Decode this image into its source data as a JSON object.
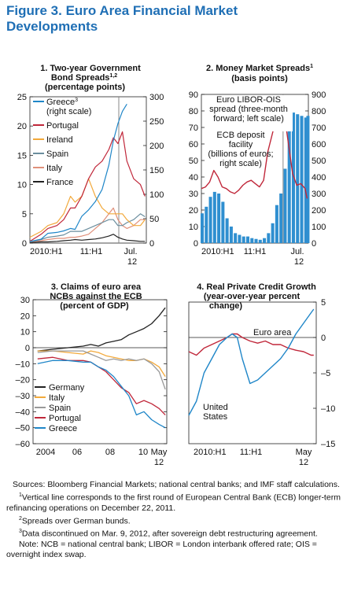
{
  "figure": {
    "title_line1": "Figure 3. Euro Area Financial Market",
    "title_line2": "Developments"
  },
  "notes": {
    "sources": "Sources: Bloomberg Financial Markets; national central banks; and IMF staff calculations.",
    "fn1_mark": "1",
    "fn1": "Vertical line corresponds to the first round of European Central Bank (ECB) longer-term refinancing operations on December 22, 2011.",
    "fn2_mark": "2",
    "fn2": "Spreads over German bunds.",
    "fn3_mark": "3",
    "fn3": "Data discontinued on Mar. 9, 2012, after sovereign debt restructuring agreement.",
    "note": "Note: NCB = national central bank; LIBOR = London interbank offered rate;  OIS = overnight index swap."
  },
  "chart_data": [
    {
      "type": "line",
      "title_line1": "1. Two-year Government",
      "title_line2": "Bond Spreads",
      "title_sup": "1,2",
      "title_line3": "(percentage points)",
      "x_ticks": [
        "2010:H1",
        "11:H1",
        "Jul."
      ],
      "x_tick_sub": "12",
      "x": [
        2010.0,
        2010.25,
        2010.4,
        2010.6,
        2010.75,
        2010.9,
        2011.0,
        2011.15,
        2011.3,
        2011.45,
        2011.6,
        2011.75,
        2011.85,
        2011.95,
        2012.05,
        2012.15,
        2012.3,
        2012.45,
        2012.55
      ],
      "xlim": [
        2010.0,
        2012.58
      ],
      "vline_x": 2011.97,
      "ylim_left": [
        0,
        25
      ],
      "yticks_left": [
        0,
        5,
        10,
        15,
        20,
        25
      ],
      "ylim_right": [
        0,
        300
      ],
      "yticks_right": [
        0,
        50,
        100,
        150,
        200,
        250,
        300
      ],
      "series": [
        {
          "name": "Greece",
          "name_sup": "3",
          "name_line2": "(right scale)",
          "color": "#1f86c8",
          "axis": "right",
          "values": [
            3,
            8,
            20,
            22,
            25,
            30,
            28,
            55,
            68,
            85,
            110,
            160,
            210,
            245,
            270,
            285,
            null,
            null,
            null
          ]
        },
        {
          "name": "Portugal",
          "color": "#c0273a",
          "axis": "left",
          "values": [
            0.3,
            1.5,
            2.5,
            3,
            4,
            6,
            6,
            8,
            11,
            13,
            14,
            16,
            18,
            17,
            19,
            14,
            11,
            10,
            8
          ]
        },
        {
          "name": "Ireland",
          "color": "#f2a93b",
          "axis": "left",
          "values": [
            1,
            2,
            3,
            3.5,
            5,
            8,
            7,
            8,
            11,
            8,
            6,
            5,
            5,
            5,
            5,
            4,
            3,
            3,
            4
          ]
        },
        {
          "name": "Spain",
          "color": "#6b8e9e",
          "axis": "left",
          "values": [
            0.2,
            0.6,
            1,
            1.2,
            1.4,
            2,
            2,
            2,
            2.5,
            3,
            3.5,
            4,
            4,
            3,
            3,
            3.5,
            4,
            5,
            4.5
          ]
        },
        {
          "name": "Italy",
          "color": "#e0907a",
          "axis": "left",
          "values": [
            0.2,
            0.4,
            0.6,
            0.8,
            0.8,
            1,
            1,
            1.2,
            1.5,
            2.5,
            3.5,
            5,
            6,
            4,
            3,
            2.5,
            3,
            4,
            4
          ]
        },
        {
          "name": "France",
          "color": "#222222",
          "axis": "left",
          "values": [
            0.1,
            0.2,
            0.2,
            0.3,
            0.4,
            0.5,
            0.6,
            0.5,
            0.6,
            0.7,
            0.9,
            1.2,
            1.5,
            1.0,
            0.7,
            0.5,
            0.4,
            0.3,
            0.3
          ]
        }
      ]
    },
    {
      "type": "line",
      "title_line1": "2. Money Market Spreads",
      "title_sup": "1",
      "title_line2": "(basis points)",
      "x_ticks": [
        "2010:H1",
        "11:H1",
        "Jul."
      ],
      "x_tick_sub": "12",
      "x": [
        2010.0,
        2010.1,
        2010.2,
        2010.3,
        2010.4,
        2010.5,
        2010.6,
        2010.7,
        2010.8,
        2010.9,
        2011.0,
        2011.1,
        2011.2,
        2011.3,
        2011.4,
        2011.5,
        2011.6,
        2011.7,
        2011.8,
        2011.9,
        2012.0,
        2012.1,
        2012.2,
        2012.3,
        2012.4,
        2012.5,
        2012.55
      ],
      "xlim": [
        2010.0,
        2012.58
      ],
      "vline_x": 2011.97,
      "ylim_left": [
        0,
        90
      ],
      "yticks_left": [
        0,
        10,
        20,
        30,
        40,
        50,
        60,
        70,
        80,
        90
      ],
      "ylim_right": [
        0,
        900
      ],
      "yticks_right": [
        0,
        100,
        200,
        300,
        400,
        500,
        600,
        700,
        800,
        900
      ],
      "series": [
        {
          "name": "Euro LIBOR-OIS spread (three-month forward; left scale)",
          "color": "#c0273a",
          "axis": "left",
          "values": [
            33,
            34,
            37,
            44,
            40,
            34,
            33,
            31,
            30,
            32,
            35,
            37,
            38,
            36,
            34,
            38,
            55,
            65,
            75,
            80,
            78,
            60,
            42,
            35,
            36,
            33,
            27
          ]
        },
        {
          "name": "ECB deposit facility (billions of euros; right scale)",
          "color": "#2f8fd0",
          "axis": "right",
          "values": [
            180,
            220,
            280,
            310,
            300,
            250,
            150,
            100,
            60,
            50,
            40,
            40,
            30,
            25,
            20,
            30,
            60,
            120,
            230,
            300,
            450,
            720,
            790,
            780,
            770,
            760,
            770
          ]
        }
      ],
      "annotation_libor": [
        "Euro LIBOR-OIS",
        "spread (three-month",
        "forward; left scale)"
      ],
      "annotation_ecb": [
        "ECB deposit",
        "facility",
        "(billions of euros;",
        "right scale)"
      ]
    },
    {
      "type": "line",
      "title_line1": "3. Claims of euro area",
      "title_line2": "NCBs against the ECB",
      "title_line3": "(percent of GDP)",
      "x_ticks": [
        "2004",
        "06",
        "08",
        "10",
        "May"
      ],
      "x_tick_sub": "12",
      "x": [
        2004.0,
        2005.0,
        2006.0,
        2007.0,
        2007.5,
        2008.0,
        2008.5,
        2009.0,
        2009.5,
        2010.0,
        2010.5,
        2011.0,
        2011.5,
        2012.0,
        2012.4
      ],
      "xlim": [
        2003.7,
        2012.5
      ],
      "ylim": [
        -60,
        30
      ],
      "yticks": [
        -60,
        -50,
        -40,
        -30,
        -20,
        -10,
        0,
        10,
        20,
        30
      ],
      "series": [
        {
          "name": "Germany",
          "color": "#222222",
          "values": [
            -2,
            -1,
            0,
            1,
            2,
            1,
            3,
            4,
            5,
            8,
            10,
            12,
            15,
            20,
            25
          ]
        },
        {
          "name": "Italy",
          "color": "#f2a93b",
          "values": [
            -2,
            -2,
            -3,
            -4,
            -2,
            -3,
            -5,
            -6,
            -7,
            -8,
            -8,
            -7,
            -9,
            -12,
            -18
          ]
        },
        {
          "name": "Spain",
          "color": "#9a9a9a",
          "values": [
            -3,
            -2,
            -2,
            -2,
            -4,
            -6,
            -8,
            -7,
            -8,
            -7,
            -8,
            -7,
            -10,
            -15,
            -26
          ]
        },
        {
          "name": "Portugal",
          "color": "#c0273a",
          "values": [
            -7,
            -6,
            -8,
            -8,
            -9,
            -12,
            -15,
            -20,
            -25,
            -28,
            -35,
            -33,
            -35,
            -38,
            -42
          ]
        },
        {
          "name": "Greece",
          "color": "#1f86c8",
          "values": [
            -10,
            -8,
            -8,
            -9,
            -9,
            -12,
            -14,
            -18,
            -24,
            -30,
            -42,
            -40,
            -45,
            -48,
            -50
          ]
        }
      ]
    },
    {
      "type": "line",
      "title_line1": "4. Real Private Credit Growth",
      "title_line2": "(year-over-year percent",
      "title_line3": "change)",
      "x_ticks": [
        "2010:H1",
        "11:H1",
        "May"
      ],
      "x_tick_sub": "12",
      "x": [
        2010.0,
        2010.15,
        2010.3,
        2010.45,
        2010.6,
        2010.75,
        2010.85,
        2010.95,
        2011.05,
        2011.2,
        2011.35,
        2011.5,
        2011.65,
        2011.8,
        2011.95,
        2012.1,
        2012.25,
        2012.4,
        2012.45
      ],
      "xlim": [
        2010.0,
        2012.5
      ],
      "ylim": [
        -15,
        5
      ],
      "yticks_labeled": [
        5,
        0,
        -5,
        -10,
        -15
      ],
      "ytick_labels": [
        "5",
        "0",
        "–5",
        "–10",
        "–15"
      ],
      "zero_line": 0,
      "series": [
        {
          "name": "Euro area",
          "color": "#c0273a",
          "values": [
            -2,
            -2.5,
            -1.5,
            -1,
            -0.5,
            0,
            0.5,
            0.5,
            0,
            -0.5,
            -0.8,
            -0.5,
            -1,
            -1,
            -1.5,
            -1.8,
            -2,
            -2.5,
            -2.5
          ]
        },
        {
          "name": "United States",
          "name_line1": "United",
          "name_line2": "States",
          "color": "#1f86c8",
          "values": [
            -11,
            -9,
            -5,
            -3,
            -1,
            0,
            0.5,
            0,
            -3,
            -6.5,
            -6,
            -5,
            -4,
            -3,
            -1.5,
            0.5,
            2,
            3.5,
            4
          ]
        }
      ]
    }
  ]
}
